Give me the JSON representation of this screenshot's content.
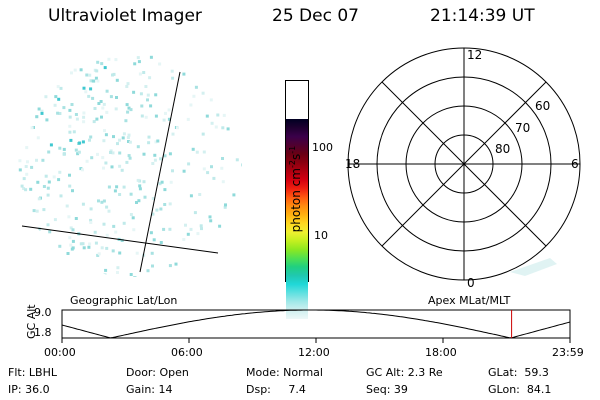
{
  "header": {
    "instrument": "Ultraviolet Imager",
    "date": "25 Dec 07",
    "time": "21:14:39 UT"
  },
  "colorbar": {
    "unit_label": "photon cm",
    "unit_exp1": "-2",
    "unit_s": "s",
    "unit_exp2": "-1",
    "ticks": [
      "100",
      "10"
    ],
    "colors": [
      "#000022",
      "#1e0030",
      "#3a004a",
      "#500030",
      "#6a0014",
      "#8a0010",
      "#b00010",
      "#d40010",
      "#ee2010",
      "#ff5810",
      "#ff8c10",
      "#ffb010",
      "#ffd820",
      "#f0f030",
      "#c4f020",
      "#8ee820",
      "#50e050",
      "#20d080",
      "#20c8b0",
      "#20d8d8",
      "#60e0e0",
      "#a0e8e8",
      "#d0f0f0",
      "#eef8f8"
    ]
  },
  "polar_plot": {
    "mlt_labels": [
      "12",
      "18",
      "6",
      "0"
    ],
    "lat_labels": [
      "60",
      "70",
      "80"
    ]
  },
  "altitude_plot": {
    "left_title": "Geographic Lat/Lon",
    "right_title": "Apex MLat/MLT",
    "y_label": "GC Alt",
    "y_ticks": [
      "9.0",
      "1.8"
    ],
    "x_ticks": [
      "00:00",
      "06:00",
      "12:00",
      "18:00",
      "23:59"
    ],
    "current_time_hours": 21.24,
    "marker_color": "#cc0000"
  },
  "status": {
    "flt": "Flt: LBHL",
    "door": "Door: Open",
    "mode": "Mode: Normal",
    "gc_alt": "GC Alt: 2.3 Re",
    "glat": "GLat:  59.3",
    "ip": "IP: 36.0",
    "gain": "Gain: 14",
    "dsp": "Dsp:     7.4",
    "seq": "Seq: 39",
    "glon": "GLon:  84.1"
  }
}
